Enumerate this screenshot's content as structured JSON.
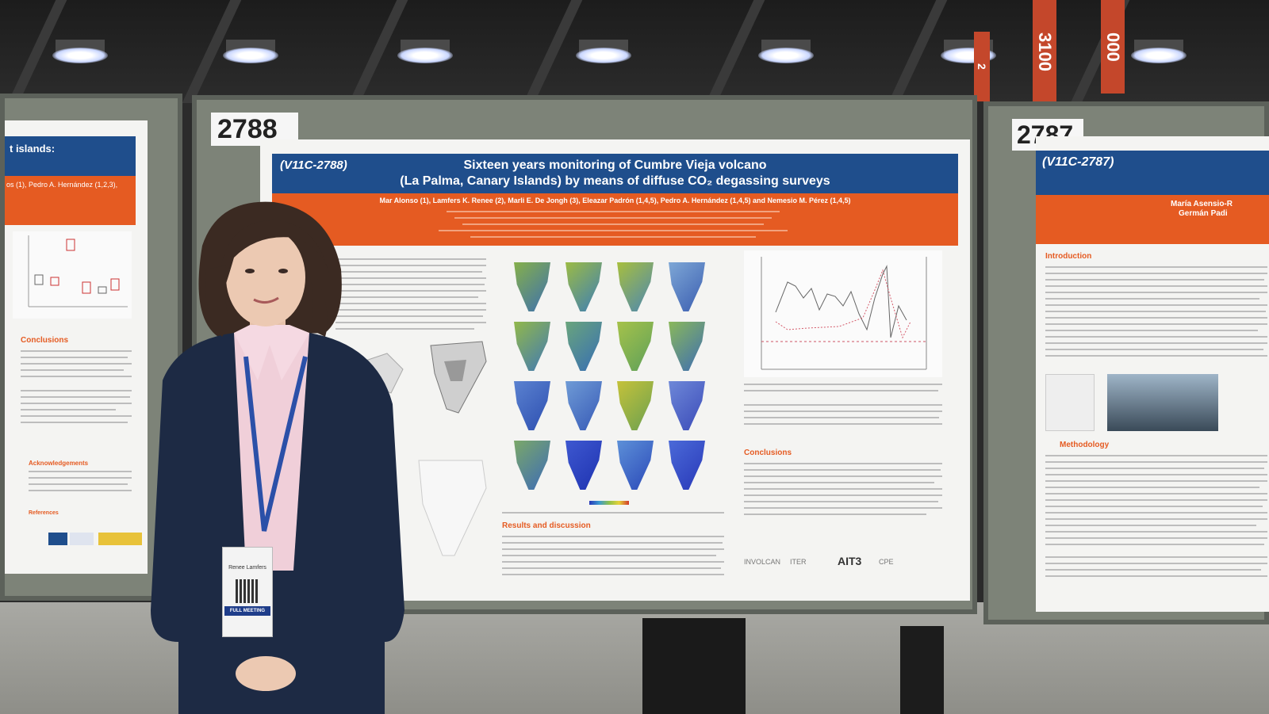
{
  "scene": {
    "description_tag": "poster-session-photo"
  },
  "hanging_signs": [
    "3100",
    "000",
    "2"
  ],
  "main_poster": {
    "number_tag": "2788",
    "session_code": "(V11C-2788)",
    "title_line1": "Sixteen years monitoring of Cumbre Vieja volcano",
    "title_line2": "(La Palma, Canary Islands) by means of diffuse CO₂ degassing surveys",
    "authors": "Mar Alonso (1), Lamfers K. Renee (2), Marli E. De Jongh (3), Eleazar Padrón (1,4,5), Pedro A. Hernández (1,4,5) and Nemesio M. Pérez (1,4,5)",
    "sections": {
      "conclusions": "Conclusions",
      "results": "Results and discussion"
    },
    "logos": [
      "INVOLCAN",
      "ITER",
      "AIT3",
      "CPE"
    ]
  },
  "left_poster": {
    "title_fragment": "t islands:",
    "authors_fragment": "os (1), Pedro A. Hernández (1,2,3),",
    "conclusions": "Conclusions",
    "acknowledgements": "Acknowledgements",
    "references": "References"
  },
  "right_poster": {
    "number_tag": "2787",
    "session_code": "(V11C-2787)",
    "authors_fragment_1": "María Asensio-R",
    "authors_fragment_2": "Germán Padi",
    "introduction": "Introduction",
    "methodology": "Methodology"
  },
  "badge": {
    "name": "Renee Lamfers",
    "label": "FULL MEETING"
  },
  "colors": {
    "poster_blue": "#1f4e8c",
    "poster_orange": "#e55b22",
    "board_grey": "#7d8378",
    "jacket_navy": "#1d2a44"
  }
}
